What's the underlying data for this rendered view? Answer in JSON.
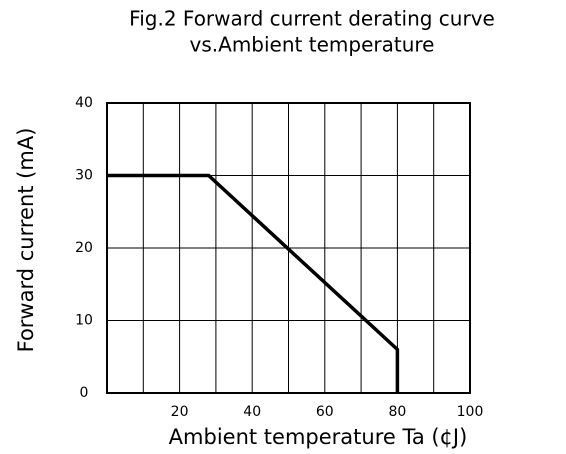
{
  "chart_data": {
    "type": "line",
    "title": "Fig.2 Forward current derating curve",
    "subtitle": "vs.Ambient temperature",
    "x_label": "Ambient temperature Ta (¢J)",
    "y_label": "Forward current (mA)",
    "x": [
      0,
      28,
      80,
      80
    ],
    "series": [
      {
        "color": "#000000",
        "values": [
          30,
          30,
          6,
          0
        ]
      }
    ],
    "xlim": [
      0,
      100
    ],
    "ylim": [
      0,
      40
    ],
    "xticks": [
      20,
      40,
      60,
      80,
      100
    ],
    "yticks": [
      0,
      10,
      20,
      30,
      40
    ],
    "xgrid": [
      10,
      20,
      30,
      40,
      50,
      60,
      70,
      80,
      90
    ],
    "grid": true
  }
}
